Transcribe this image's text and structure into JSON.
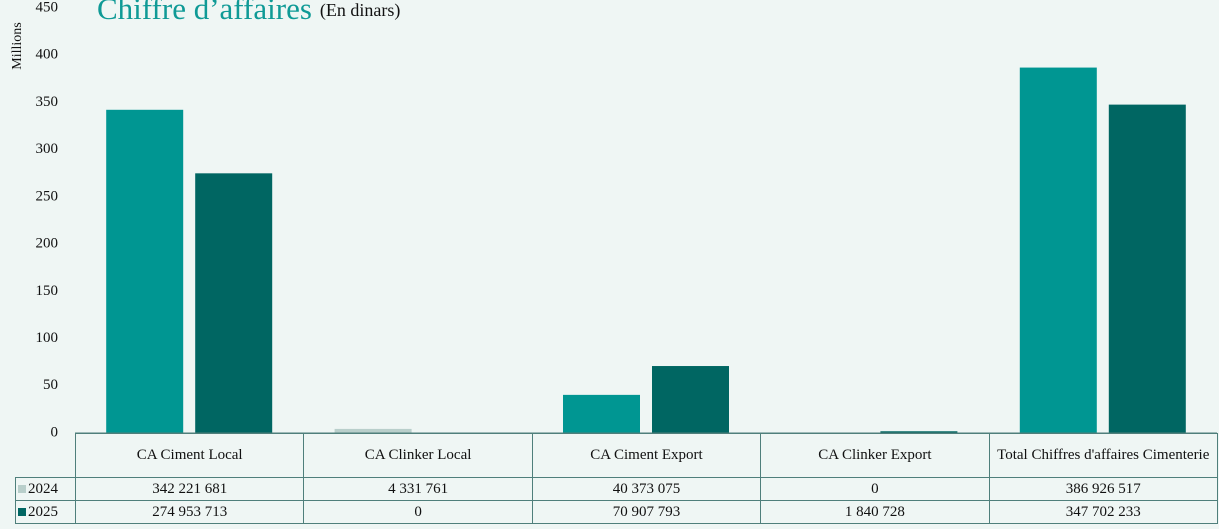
{
  "chart_data": {
    "type": "bar",
    "title": "Chiffre d’affaires",
    "subtitle": "(En dinars)",
    "y_label": "Millions",
    "categories": [
      "CA Ciment Local",
      "CA Clinker Local",
      "CA Ciment Export",
      "CA Clinker Export",
      "Total Chiffres d'affaires Cimenterie"
    ],
    "series": [
      {
        "name": "2024",
        "color": "#009692",
        "legend_color": "#b9cfcb",
        "values": [
          342.221681,
          4.331761,
          40.373075,
          0,
          386.926517
        ],
        "value_labels": [
          "342 221 681",
          "4 331 761",
          "40 373 075",
          "0",
          "386 926 517"
        ]
      },
      {
        "name": "2025",
        "color": "#006662",
        "legend_color": "#006662",
        "values": [
          274.953713,
          0,
          70.907793,
          1.840728,
          347.702233
        ],
        "value_labels": [
          "274 953 713",
          "0",
          "70 907 793",
          "1 840 728",
          "347 702 233"
        ]
      }
    ],
    "ylim": [
      0,
      450
    ],
    "yticks": [
      0,
      50,
      100,
      150,
      200,
      250,
      300,
      350,
      400,
      450
    ]
  }
}
